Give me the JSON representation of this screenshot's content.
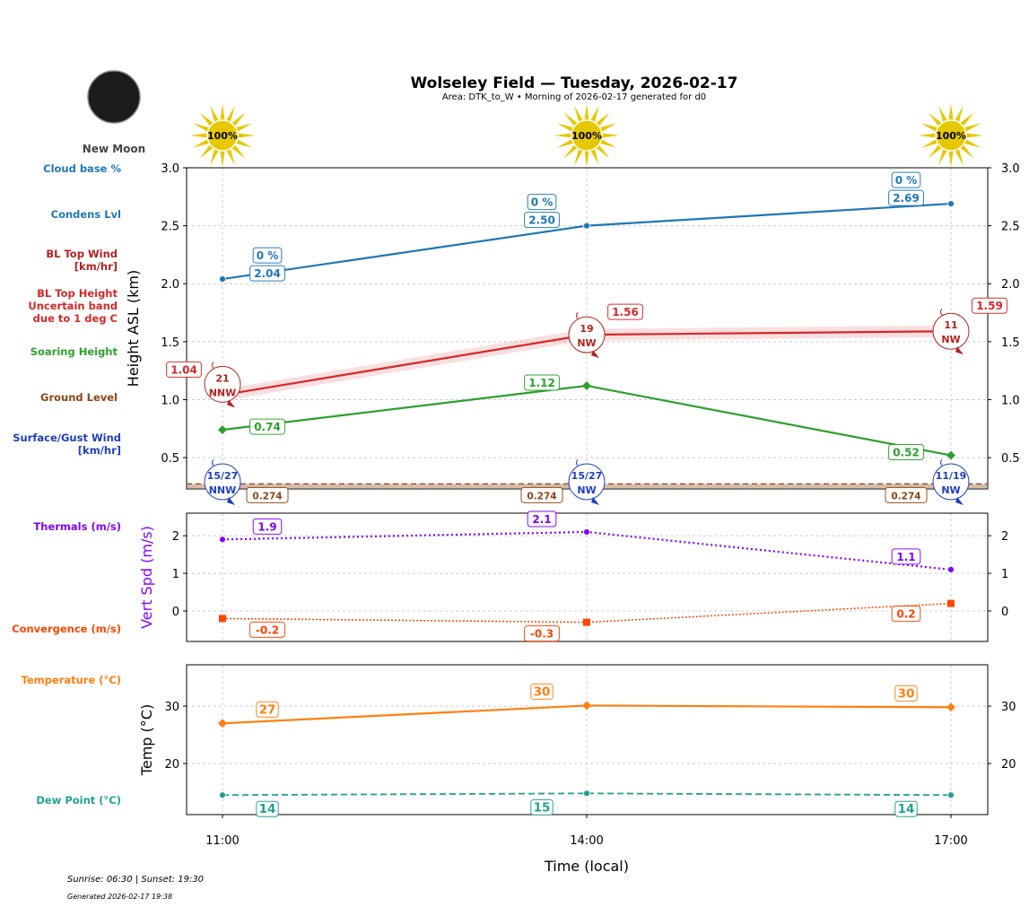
{
  "header": {
    "title": "Wolseley Field — Tuesday, 2026-02-17",
    "subtitle": "Area: DTK_to_W • Morning of 2026-02-17 generated for d0",
    "moon_phase": "New Moon",
    "sun_icon": "sun-icon",
    "sun_percent": [
      "100%",
      "100%",
      "100%"
    ]
  },
  "left_labels": {
    "cloud_base": "Cloud base %",
    "condens": "Condens Lvl",
    "bl_wind": "BL Top Wind\n[km/hr]",
    "bl_height": "BL Top Height\nUncertain band\ndue to 1 deg C",
    "soaring": "Soaring Height",
    "ground": "Ground Level",
    "surface_wind": "Surface/Gust Wind\n[km/hr]",
    "thermals": "Thermals (m/s)",
    "convergence": "Convergence (m/s)",
    "temperature": "Temperature (°C)",
    "dew": "Dew Point (°C)"
  },
  "footer": {
    "sun": "Sunrise: 06:30 | Sunset: 19:30",
    "generated": "Generated 2026-02-17 19:38"
  },
  "colors": {
    "condens": "#1f77b4",
    "bl": "#d62728",
    "soaring": "#2ca02c",
    "ground": "#8b4513",
    "surface": "#1f3fbf",
    "thermals": "#8000ff",
    "convergence": "#ff4500",
    "temperature": "#ff7f0e",
    "dew": "#20a090",
    "sun": "#e6c800"
  },
  "chart_data": [
    {
      "type": "line",
      "ylabel": "Height ASL (km)",
      "ylim": [
        0.23,
        3.0
      ],
      "yticks": [
        "3.0",
        "2.5",
        "2.0",
        "1.5",
        "1.0",
        "0.5"
      ],
      "grid": true,
      "x": [
        "11:00",
        "14:00",
        "17:00"
      ],
      "series": [
        {
          "key": "condens",
          "values": [
            2.04,
            2.5,
            2.69
          ],
          "labels": [
            "2.04",
            "2.50",
            "2.69"
          ],
          "cloud_base": [
            "0 %",
            "0 %",
            "0 %"
          ]
        },
        {
          "key": "bl",
          "values": [
            1.04,
            1.56,
            1.59
          ],
          "labels": [
            "1.04",
            "1.56",
            "1.59"
          ],
          "uncertainty": 0.05,
          "wind": [
            [
              "21",
              "NNW"
            ],
            [
              "19",
              "NW"
            ],
            [
              "11",
              "NW"
            ]
          ]
        },
        {
          "key": "soaring",
          "values": [
            0.74,
            1.12,
            0.52
          ],
          "labels": [
            "0.74",
            "1.12",
            "0.52"
          ]
        },
        {
          "key": "ground",
          "values": [
            0.274,
            0.274,
            0.274
          ],
          "labels": [
            "0.274",
            "0.274",
            "0.274"
          ]
        },
        {
          "key": "surface",
          "wind": [
            [
              "15/27",
              "NNW"
            ],
            [
              "15/27",
              "NW"
            ],
            [
              "11/19",
              "NW"
            ]
          ]
        }
      ]
    },
    {
      "type": "line",
      "ylabel": "Vert Spd (m/s)",
      "ylim": [
        -0.81,
        2.6
      ],
      "yticks": [
        "2",
        "1",
        "0"
      ],
      "grid": true,
      "series": [
        {
          "key": "thermals",
          "values": [
            1.9,
            2.1,
            1.1
          ],
          "labels": [
            "1.9",
            "2.1",
            "1.1"
          ]
        },
        {
          "key": "convergence",
          "values": [
            -0.2,
            -0.3,
            0.2
          ],
          "labels": [
            "-0.2",
            "-0.3",
            "0.2"
          ]
        }
      ]
    },
    {
      "type": "line",
      "ylabel": "Temp (°C)",
      "xlabel": "Time (local)",
      "ylim": [
        11.1,
        37.2
      ],
      "yticks": [
        "30",
        "20"
      ],
      "grid": true,
      "xticks": [
        "11:00",
        "14:00",
        "17:00"
      ],
      "series": [
        {
          "key": "temperature",
          "values": [
            27.0,
            30.1,
            29.8
          ],
          "labels": [
            "27",
            "30",
            "30"
          ]
        },
        {
          "key": "dew",
          "values": [
            14.5,
            14.8,
            14.5
          ],
          "labels": [
            "14",
            "15",
            "14"
          ]
        }
      ]
    }
  ]
}
